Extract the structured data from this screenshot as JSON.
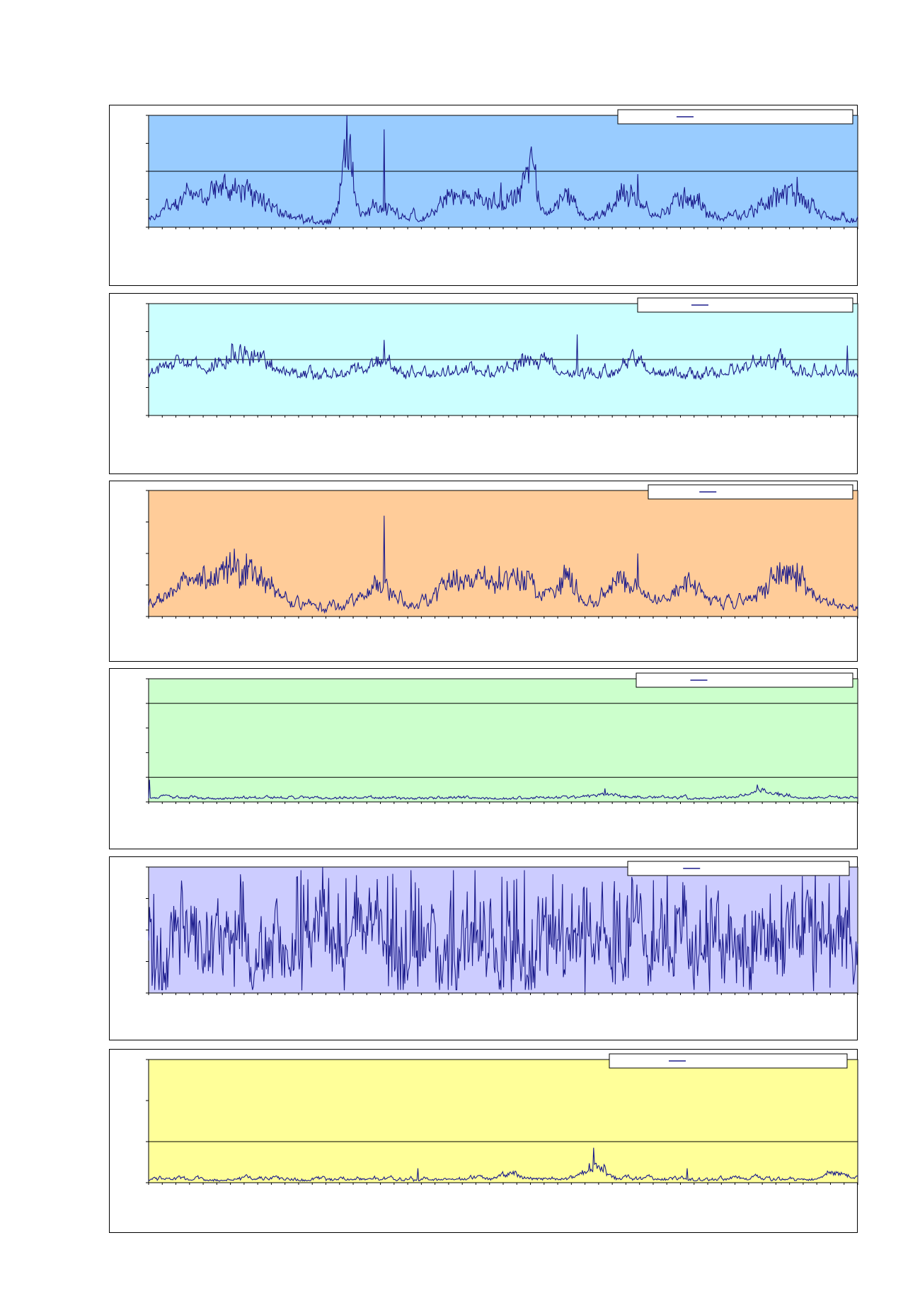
{
  "line_color": "#1b1b8c",
  "chart_data": [
    {
      "type": "line",
      "bg": "#99ccff",
      "ylim": [
        0,
        4
      ],
      "grid_y": [
        2
      ],
      "n": 820,
      "seed": 11,
      "base": 0.12,
      "amp": 0.35,
      "bumps": [
        [
          0.05,
          0.035,
          0.45
        ],
        [
          0.12,
          0.06,
          1.1
        ],
        [
          0.33,
          0.03,
          0.5
        ],
        [
          0.28,
          0.01,
          2.8
        ],
        [
          0.43,
          0.03,
          0.8
        ],
        [
          0.47,
          0.02,
          0.6
        ],
        [
          0.52,
          0.03,
          0.9
        ],
        [
          0.54,
          0.01,
          1.4
        ],
        [
          0.59,
          0.02,
          0.8
        ],
        [
          0.67,
          0.03,
          0.9
        ],
        [
          0.76,
          0.03,
          0.8
        ],
        [
          0.9,
          0.04,
          1.0
        ]
      ],
      "spikes": [
        [
          0.332,
          3.5
        ],
        [
          0.497,
          1.6
        ],
        [
          0.53,
          1.7
        ],
        [
          0.69,
          1.9
        ],
        [
          0.915,
          1.8
        ]
      ]
    },
    {
      "type": "line",
      "bg": "#ccffff",
      "ylim": [
        0,
        4
      ],
      "grid_y": [
        2
      ],
      "n": 820,
      "seed": 23,
      "base": 1.35,
      "amp": 0.45,
      "bumps": [
        [
          0.04,
          0.03,
          0.3
        ],
        [
          0.13,
          0.04,
          0.7
        ],
        [
          0.33,
          0.02,
          0.4
        ],
        [
          0.53,
          0.03,
          0.5
        ],
        [
          0.68,
          0.02,
          0.4
        ],
        [
          0.88,
          0.03,
          0.5
        ]
      ],
      "spikes": [
        [
          0.332,
          2.7
        ],
        [
          0.605,
          2.9
        ],
        [
          0.985,
          2.5
        ]
      ]
    },
    {
      "type": "line",
      "bg": "#ffcc99",
      "ylim": [
        0,
        4
      ],
      "grid_y": [],
      "n": 820,
      "seed": 37,
      "base": 0.15,
      "amp": 0.35,
      "bumps": [
        [
          0.05,
          0.035,
          0.5
        ],
        [
          0.12,
          0.06,
          1.2
        ],
        [
          0.33,
          0.03,
          0.6
        ],
        [
          0.43,
          0.03,
          0.8
        ],
        [
          0.47,
          0.02,
          0.7
        ],
        [
          0.52,
          0.03,
          1.0
        ],
        [
          0.59,
          0.02,
          0.9
        ],
        [
          0.67,
          0.03,
          0.9
        ],
        [
          0.76,
          0.03,
          0.8
        ],
        [
          0.9,
          0.04,
          1.1
        ]
      ],
      "spikes": [
        [
          0.332,
          3.2
        ],
        [
          0.138,
          2.0
        ],
        [
          0.495,
          1.6
        ],
        [
          0.69,
          2.0
        ],
        [
          0.915,
          1.7
        ]
      ]
    },
    {
      "type": "line",
      "bg": "#ccffcc",
      "ylim": [
        0,
        5
      ],
      "grid_y": [
        1,
        4
      ],
      "n": 820,
      "seed": 51,
      "base": 0.12,
      "amp": 0.12,
      "bumps": [
        [
          0.64,
          0.03,
          0.15
        ],
        [
          0.87,
          0.03,
          0.25
        ]
      ],
      "spikes": [
        [
          0.001,
          0.9
        ],
        [
          0.643,
          0.55
        ],
        [
          0.858,
          0.7
        ]
      ]
    },
    {
      "type": "line",
      "bg": "#ccccff",
      "ylim": [
        0,
        4
      ],
      "grid_y": [],
      "n": 820,
      "seed": 67,
      "base": 1.6,
      "amp": 1.6,
      "bumps": [],
      "spikes": [
        [
          0.215,
          3.9
        ],
        [
          0.37,
          3.9
        ],
        [
          0.43,
          3.9
        ],
        [
          0.46,
          3.9
        ],
        [
          0.53,
          3.9
        ],
        [
          0.94,
          3.9
        ]
      ],
      "volatile": true
    },
    {
      "type": "line",
      "bg": "#ffff99",
      "ylim": [
        0,
        3
      ],
      "grid_y": [
        1
      ],
      "n": 820,
      "seed": 83,
      "base": 0.05,
      "amp": 0.1,
      "bumps": [
        [
          0.63,
          0.02,
          0.35
        ],
        [
          0.51,
          0.02,
          0.15
        ],
        [
          0.97,
          0.02,
          0.15
        ]
      ],
      "spikes": [
        [
          0.627,
          0.85
        ],
        [
          0.38,
          0.35
        ],
        [
          0.76,
          0.35
        ]
      ]
    }
  ]
}
